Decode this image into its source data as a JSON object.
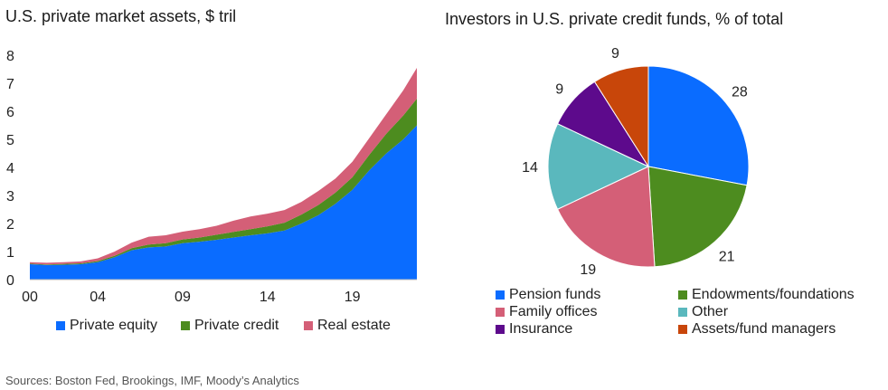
{
  "sources": "Sources: Boston Fed, Brookings, IMF, Moody’s Analytics",
  "chart_data": [
    {
      "type": "area",
      "stacked": true,
      "title": "U.S. private market assets, $ tril",
      "x_tick_labels": [
        "00",
        "04",
        "09",
        "14",
        "19"
      ],
      "x_tick_years": [
        2000,
        2004,
        2009,
        2014,
        2019
      ],
      "y_ticks": [
        0,
        1,
        2,
        3,
        4,
        5,
        6,
        7,
        8
      ],
      "ylim": [
        0,
        8
      ],
      "xlim": [
        2000,
        2022.8
      ],
      "grid": false,
      "legend_position": "bottom",
      "x": [
        2000,
        2001,
        2002,
        2003,
        2004,
        2005,
        2006,
        2007,
        2008,
        2009,
        2010,
        2011,
        2012,
        2013,
        2014,
        2015,
        2016,
        2017,
        2018,
        2019,
        2020,
        2021,
        2022,
        2022.8
      ],
      "series": [
        {
          "name": "Private equity",
          "color": "#0a6cff",
          "values": [
            0.55,
            0.52,
            0.53,
            0.55,
            0.62,
            0.8,
            1.05,
            1.15,
            1.18,
            1.3,
            1.35,
            1.42,
            1.5,
            1.58,
            1.65,
            1.75,
            2.0,
            2.3,
            2.7,
            3.2,
            3.9,
            4.5,
            5.0,
            5.5
          ]
        },
        {
          "name": "Private credit",
          "color": "#4d8c1f",
          "values": [
            0.02,
            0.02,
            0.03,
            0.03,
            0.04,
            0.05,
            0.07,
            0.1,
            0.12,
            0.13,
            0.15,
            0.18,
            0.2,
            0.22,
            0.25,
            0.28,
            0.32,
            0.36,
            0.4,
            0.45,
            0.55,
            0.7,
            0.85,
            0.95
          ]
        },
        {
          "name": "Real estate",
          "color": "#d45f77",
          "values": [
            0.05,
            0.06,
            0.06,
            0.07,
            0.1,
            0.15,
            0.2,
            0.28,
            0.28,
            0.28,
            0.3,
            0.32,
            0.4,
            0.45,
            0.45,
            0.45,
            0.45,
            0.5,
            0.5,
            0.55,
            0.6,
            0.7,
            0.9,
            1.1
          ]
        }
      ]
    },
    {
      "type": "pie",
      "title": "Investors in U.S. private credit funds, % of total",
      "legend_position": "bottom",
      "slices": [
        {
          "name": "Pension funds",
          "value": 28,
          "color": "#0a6cff"
        },
        {
          "name": "Endowments/foundations",
          "value": 21,
          "color": "#4d8c1f"
        },
        {
          "name": "Family offices",
          "value": 19,
          "color": "#d45f77"
        },
        {
          "name": "Other",
          "value": 14,
          "color": "#5ab8bd"
        },
        {
          "name": "Insurance",
          "value": 9,
          "color": "#5d0a8c"
        },
        {
          "name": "Assets/fund managers",
          "value": 9,
          "color": "#c8460a"
        }
      ]
    }
  ]
}
